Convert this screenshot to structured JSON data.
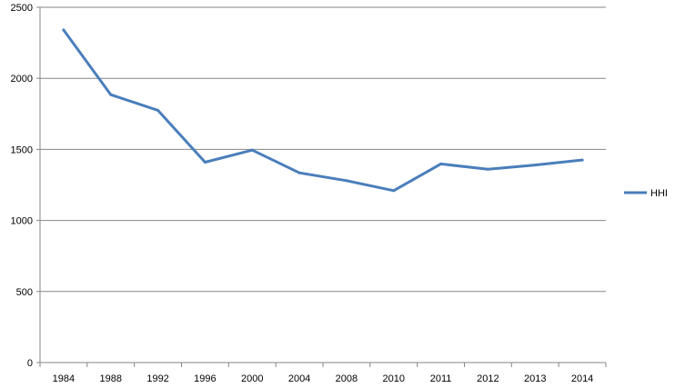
{
  "chart_data": {
    "type": "line",
    "title": "",
    "xlabel": "",
    "ylabel": "",
    "categories": [
      "1984",
      "1988",
      "1992",
      "1996",
      "2000",
      "2004",
      "2008",
      "2010",
      "2011",
      "2012",
      "2013",
      "2014"
    ],
    "series": [
      {
        "name": "HHI",
        "values": [
          2340,
          1885,
          1775,
          1410,
          1495,
          1335,
          1280,
          1210,
          1398,
          1360,
          1390,
          1425
        ],
        "color": "#4a7ebb"
      }
    ],
    "ylim": [
      0,
      2500
    ],
    "yticks": [
      "0",
      "500",
      "1000",
      "1500",
      "2000",
      "2500"
    ],
    "grid": true,
    "legend_position": "right"
  }
}
